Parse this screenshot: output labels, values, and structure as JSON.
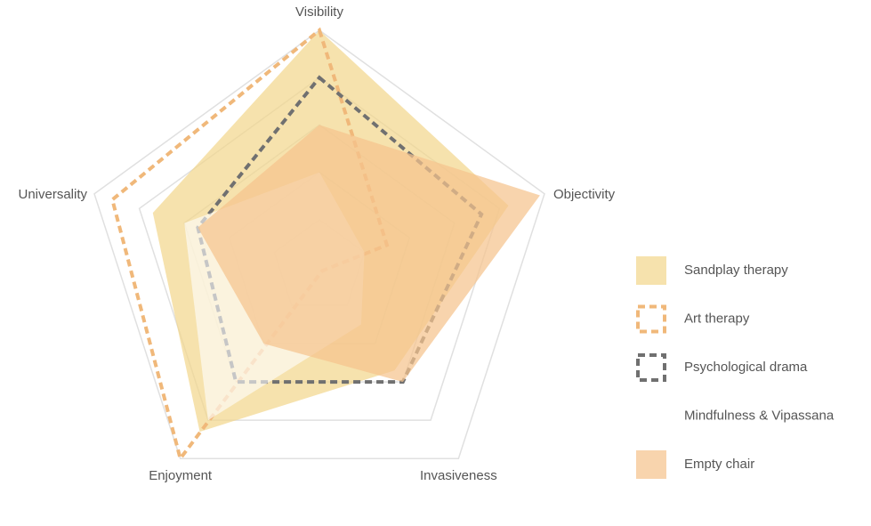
{
  "chart_data": {
    "type": "radar",
    "axes": [
      "Visibility",
      "Objectivity",
      "Invasiveness",
      "Enjoyment",
      "Universality"
    ],
    "range": [
      0,
      5
    ],
    "grid_levels": 5,
    "legend_position": "right",
    "series": [
      {
        "name": "Sandplay therapy",
        "values": [
          5,
          4.2,
          2.7,
          4.3,
          3.7
        ],
        "color": "#f2d68a",
        "style": "fill",
        "opacity": 0.7
      },
      {
        "name": "Art therapy",
        "values": [
          5,
          1.5,
          0.1,
          5,
          4.6
        ],
        "color": "#f0b87a",
        "style": "dashed",
        "opacity": 1
      },
      {
        "name": "Psychological drama",
        "values": [
          4,
          3.6,
          3,
          3,
          2.7
        ],
        "color": "#707070",
        "style": "dashed",
        "opacity": 1
      },
      {
        "name": "Mindfulness & Vipassana",
        "values": [
          2,
          1,
          1.5,
          4,
          3
        ],
        "color": "#ffffff",
        "style": "fill",
        "opacity": 0.6
      },
      {
        "name": "Empty chair",
        "values": [
          3,
          4.9,
          3,
          2,
          2.7
        ],
        "color": "#f5c48e",
        "style": "fill",
        "opacity": 0.72
      }
    ]
  }
}
